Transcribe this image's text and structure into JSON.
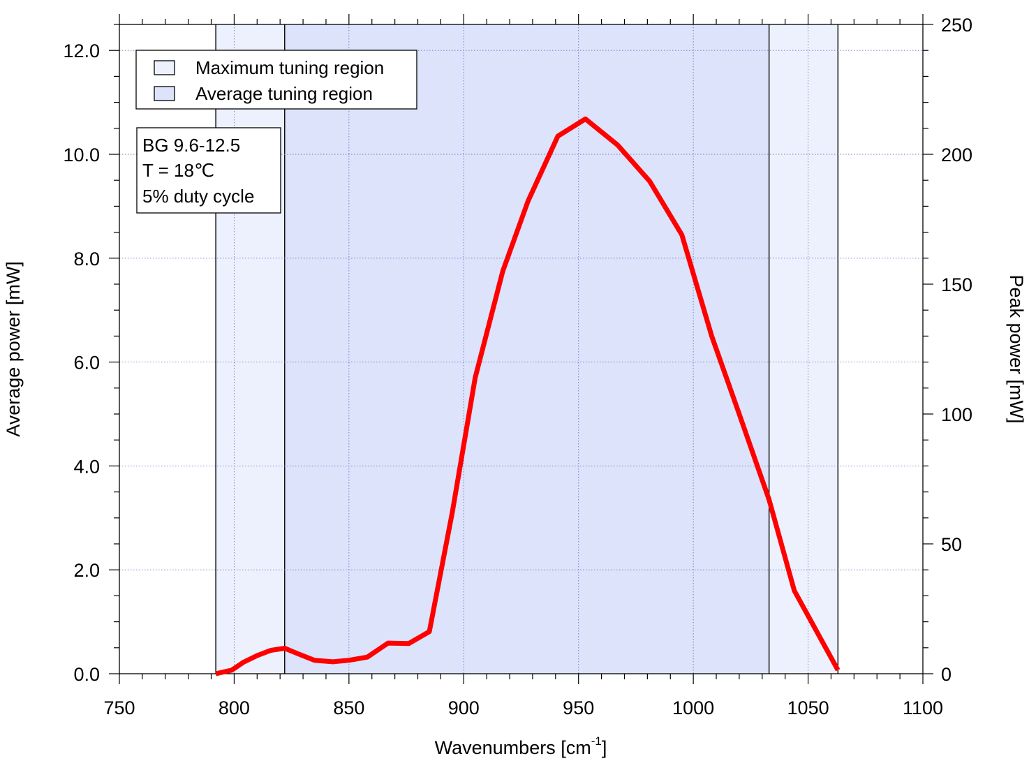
{
  "chart_data": {
    "type": "line",
    "title": "",
    "xlabel": "Wavenumbers [cm",
    "xlabel_superscript": "-1",
    "xlabel_suffix": "]",
    "ylabel": "Average power [mW]",
    "y2label": "Peak power [mW]",
    "xlim": [
      750,
      1100
    ],
    "ylim": [
      0,
      12.5
    ],
    "y2lim": [
      0,
      250
    ],
    "xticks": [
      "750",
      "800",
      "850",
      "900",
      "950",
      "1000",
      "1050",
      "1100"
    ],
    "xtick_values": [
      750,
      800,
      850,
      900,
      950,
      1000,
      1050,
      1100
    ],
    "yticks": [
      "0.0",
      "2.0",
      "4.0",
      "6.0",
      "8.0",
      "10.0",
      "12.0"
    ],
    "ytick_values": [
      0,
      2,
      4,
      6,
      8,
      10,
      12
    ],
    "y2ticks": [
      "0",
      "50",
      "100",
      "150",
      "200",
      "250"
    ],
    "y2tick_values": [
      0,
      50,
      100,
      150,
      200,
      250
    ],
    "grid": true,
    "series": [
      {
        "color": "#ff0000",
        "x": [
          792,
          799,
          804,
          810,
          816,
          822,
          828,
          835,
          843,
          850,
          858,
          867,
          876,
          885,
          895,
          905,
          917,
          928,
          941,
          953,
          967,
          981,
          995,
          1008,
          1020,
          1033,
          1044,
          1063
        ],
        "y": [
          0.0,
          0.07,
          0.22,
          0.35,
          0.45,
          0.49,
          0.38,
          0.26,
          0.23,
          0.26,
          0.32,
          0.59,
          0.58,
          0.81,
          3.1,
          5.7,
          7.75,
          9.1,
          10.35,
          10.68,
          10.18,
          9.48,
          8.45,
          6.5,
          5.0,
          3.35,
          1.6,
          0.07
        ]
      }
    ],
    "regions": [
      {
        "name": "Maximum tuning region",
        "x_start": 792,
        "x_end": 1063,
        "color": "#edf1fd"
      },
      {
        "name": "Average tuning region",
        "x_start": 822,
        "x_end": 1033,
        "color": "#dce3fa"
      }
    ],
    "legend_position": "top-left",
    "annotation_lines": [
      "BG 9.6-12.5",
      "T = 18℃",
      "5% duty cycle"
    ]
  }
}
